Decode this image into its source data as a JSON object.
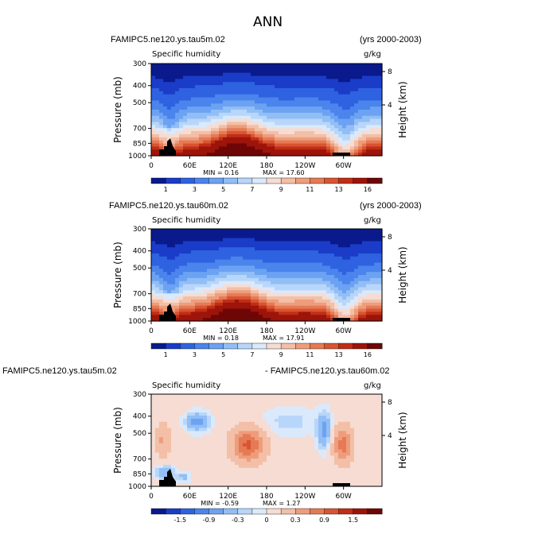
{
  "title": "ANN",
  "chart_data": [
    {
      "type": "heatmap",
      "case": "FAMIPC5.ne120.ys.tau5m.02",
      "years": "(yrs 2000-2003)",
      "variable": "Specific humidity",
      "units": "g/kg",
      "ylabel": "Pressure (mb)",
      "ylabel_right": "Height (km)",
      "x_ticks": [
        "0",
        "60E",
        "120E",
        "180",
        "120W",
        "60W"
      ],
      "y_ticks": [
        "300",
        "400",
        "500",
        "700",
        "850",
        "1000"
      ],
      "y_ticks_right": [
        "8",
        "4"
      ],
      "min_label": "MIN =",
      "min": "0.16",
      "max_label": "MAX =",
      "max": "17.60",
      "colorbar_labels": [
        "1",
        "3",
        "5",
        "7",
        "9",
        "11",
        "13",
        "16"
      ]
    },
    {
      "type": "heatmap",
      "case": "FAMIPC5.ne120.ys.tau60m.02",
      "years": "(yrs 2000-2003)",
      "variable": "Specific humidity",
      "units": "g/kg",
      "ylabel": "Pressure (mb)",
      "ylabel_right": "Height (km)",
      "x_ticks": [
        "0",
        "60E",
        "120E",
        "180",
        "120W",
        "60W"
      ],
      "y_ticks": [
        "300",
        "400",
        "500",
        "700",
        "850",
        "1000"
      ],
      "y_ticks_right": [
        "8",
        "4"
      ],
      "min_label": "MIN =",
      "min": "0.18",
      "max_label": "MAX =",
      "max": "17.91",
      "colorbar_labels": [
        "1",
        "3",
        "5",
        "7",
        "9",
        "11",
        "13",
        "16"
      ]
    },
    {
      "type": "heatmap",
      "case": "FAMIPC5.ne120.ys.tau5m.02",
      "case2": "- FAMIPC5.ne120.ys.tau60m.02",
      "variable": "Specific humidity",
      "units": "g/kg",
      "ylabel": "Pressure (mb)",
      "ylabel_right": "Height (km)",
      "x_ticks": [
        "0",
        "60E",
        "120E",
        "180",
        "120W",
        "60W"
      ],
      "y_ticks": [
        "300",
        "400",
        "500",
        "700",
        "850",
        "1000"
      ],
      "y_ticks_right": [
        "8",
        "4"
      ],
      "min_label": "MIN =",
      "min": "-0.59",
      "max_label": "MAX =",
      "max": "1.27",
      "colorbar_labels": [
        "-1.5",
        "-0.9",
        "-0.3",
        "0",
        "0.3",
        "0.9",
        "1.5"
      ]
    }
  ],
  "colors": {
    "abs_scale": [
      "#0a1a8c",
      "#1a3cc8",
      "#2e62e0",
      "#4a84ec",
      "#6ca2f2",
      "#92bef6",
      "#b8d6fa",
      "#dae9fb",
      "#f6dcd2",
      "#f3bfa7",
      "#ee9d7c",
      "#e57a55",
      "#d85432",
      "#c02e16",
      "#9c140a",
      "#6e0606"
    ],
    "diff_scale": [
      "#0a1a8c",
      "#1a3cc8",
      "#2e62e0",
      "#4a84ec",
      "#6ca2f2",
      "#92bef6",
      "#b8d6fa",
      "#dae9fb",
      "#f6dcd2",
      "#f3bfa7",
      "#ee9d7c",
      "#e57a55",
      "#d85432",
      "#c02e16",
      "#9c140a",
      "#6e0606"
    ]
  }
}
